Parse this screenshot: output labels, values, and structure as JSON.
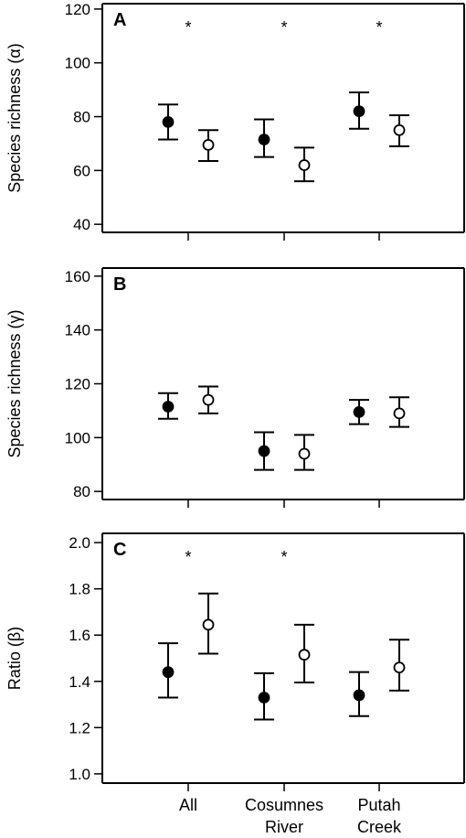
{
  "chart_data": [
    {
      "panel_label": "A",
      "type": "scatter",
      "ylabel": "Species richness (α)",
      "ylim": [
        37,
        122
      ],
      "yticks": [
        40,
        60,
        80,
        100,
        120
      ],
      "categories": [
        "All",
        "Cosumnes River",
        "Putah Creek"
      ],
      "series": [
        {
          "marker": "filled",
          "values": [
            78,
            71.5,
            82
          ],
          "lower": [
            71.5,
            65,
            75.5
          ],
          "upper": [
            84.5,
            79,
            89
          ]
        },
        {
          "marker": "open",
          "values": [
            69.5,
            62,
            75
          ],
          "lower": [
            63.5,
            56,
            69
          ],
          "upper": [
            75,
            68.5,
            80.5
          ]
        }
      ],
      "significance": [
        "*",
        "*",
        "*"
      ]
    },
    {
      "panel_label": "B",
      "type": "scatter",
      "ylabel": "Species richness (γ)",
      "ylim": [
        77,
        163
      ],
      "yticks": [
        80,
        100,
        120,
        140,
        160
      ],
      "categories": [
        "All",
        "Cosumnes River",
        "Putah Creek"
      ],
      "series": [
        {
          "marker": "filled",
          "values": [
            111.5,
            95,
            109.5
          ],
          "lower": [
            107,
            88,
            105
          ],
          "upper": [
            116.5,
            102,
            114
          ]
        },
        {
          "marker": "open",
          "values": [
            114,
            94,
            109
          ],
          "lower": [
            109,
            88,
            104
          ],
          "upper": [
            119,
            101,
            115
          ]
        }
      ],
      "significance": [
        "",
        "",
        ""
      ]
    },
    {
      "panel_label": "C",
      "type": "scatter",
      "ylabel": "Ratio (β)",
      "ylim": [
        0.96,
        2.04
      ],
      "yticks": [
        1.0,
        1.2,
        1.4,
        1.6,
        1.8,
        2.0
      ],
      "ytick_labels": [
        "1.0",
        "1.2",
        "1.4",
        "1.6",
        "1.8",
        "2.0"
      ],
      "categories": [
        "All",
        "Cosumnes River",
        "Putah Creek"
      ],
      "series": [
        {
          "marker": "filled",
          "values": [
            1.44,
            1.33,
            1.34
          ],
          "lower": [
            1.33,
            1.235,
            1.25
          ],
          "upper": [
            1.565,
            1.435,
            1.44
          ]
        },
        {
          "marker": "open",
          "values": [
            1.645,
            1.515,
            1.46
          ],
          "lower": [
            1.52,
            1.395,
            1.36
          ],
          "upper": [
            1.78,
            1.645,
            1.58
          ]
        }
      ],
      "significance": [
        "*",
        "*",
        ""
      ]
    }
  ],
  "x_axis": {
    "labels": [
      [
        "All"
      ],
      [
        "Cosumnes",
        "River"
      ],
      [
        "Putah",
        "Creek"
      ]
    ]
  }
}
